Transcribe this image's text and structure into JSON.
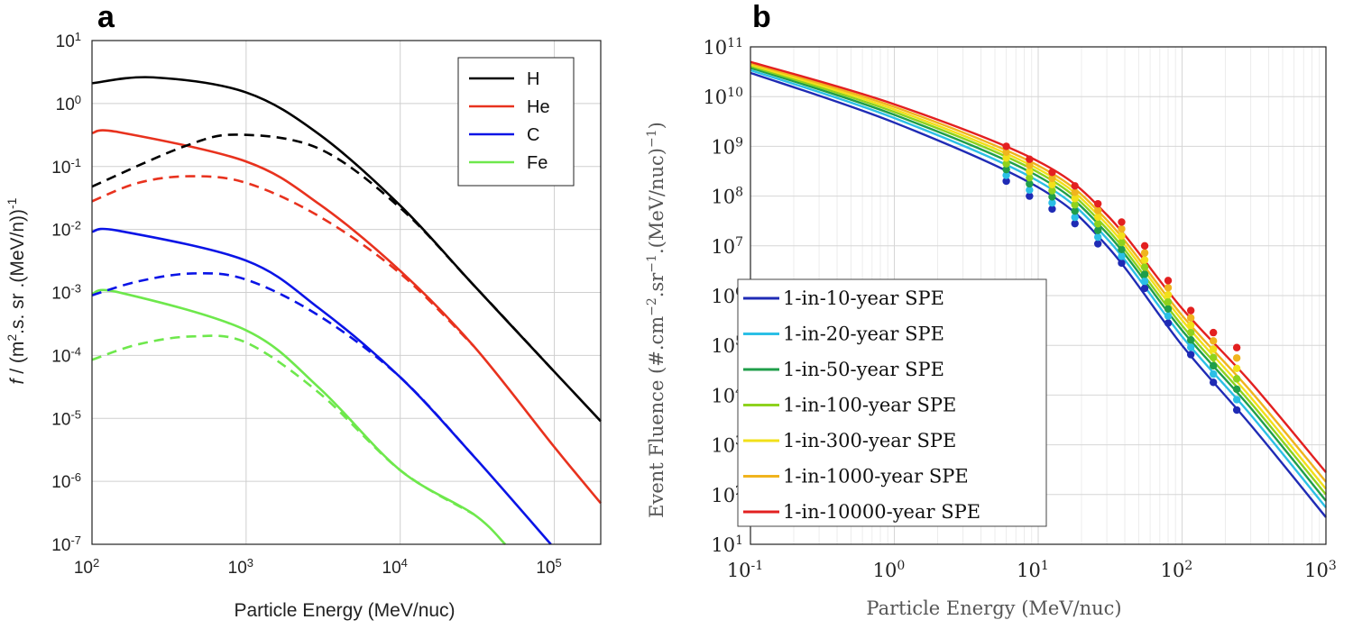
{
  "chart_data": [
    {
      "panel_label": "a",
      "type": "line",
      "xlabel": "Particle Energy (MeV/nuc)",
      "ylabel": "f / (m².s. sr .(MeV/n))⁻¹",
      "ylabel_parts": {
        "italic": "f",
        "pre": " / (m",
        "sup1": "2",
        "mid": ".s. sr .(MeV/n))",
        "sup2": "-1"
      },
      "xscale": "log",
      "yscale": "log",
      "xlim": [
        100,
        200000
      ],
      "ylim": [
        1e-07,
        10
      ],
      "xticks": [
        {
          "base": "10",
          "exp": "2",
          "v": 100
        },
        {
          "base": "10",
          "exp": "3",
          "v": 1000
        },
        {
          "base": "10",
          "exp": "4",
          "v": 10000
        },
        {
          "base": "10",
          "exp": "5",
          "v": 100000
        }
      ],
      "yticks": [
        {
          "base": "10",
          "exp": "1",
          "v": 10
        },
        {
          "base": "10",
          "exp": "0",
          "v": 1
        },
        {
          "base": "10",
          "exp": "-1",
          "v": 0.1
        },
        {
          "base": "10",
          "exp": "-2",
          "v": 0.01
        },
        {
          "base": "10",
          "exp": "-3",
          "v": 0.001
        },
        {
          "base": "10",
          "exp": "-4",
          "v": 0.0001
        },
        {
          "base": "10",
          "exp": "-5",
          "v": 1e-05
        },
        {
          "base": "10",
          "exp": "-6",
          "v": 1e-06
        },
        {
          "base": "10",
          "exp": "-7",
          "v": 1e-07
        }
      ],
      "grid": true,
      "legend_position": "top-right",
      "series": [
        {
          "name": "H",
          "style": "solid",
          "color": "#000000",
          "x": [
            100,
            250,
            1000,
            3000,
            10000,
            30000,
            100000,
            200000
          ],
          "y": [
            2.1,
            2.6,
            1.5,
            0.32,
            0.024,
            0.0013,
            5.5e-05,
            9e-06
          ]
        },
        {
          "name": "He",
          "style": "solid",
          "color": "#e8321e",
          "x": [
            100,
            150,
            1000,
            3000,
            10000,
            30000,
            100000,
            200000
          ],
          "y": [
            0.34,
            0.35,
            0.12,
            0.025,
            0.0022,
            0.00014,
            3.5e-06,
            4.5e-07
          ]
        },
        {
          "name": "C",
          "style": "solid",
          "color": "#0a14e6",
          "x": [
            100,
            150,
            1000,
            3000,
            10000,
            30000,
            95000
          ],
          "y": [
            0.0092,
            0.0095,
            0.0032,
            0.00055,
            4.5e-05,
            2.5e-06,
            1e-07
          ]
        },
        {
          "name": "Fe",
          "style": "solid",
          "color": "#6ee84c",
          "x": [
            100,
            150,
            1000,
            3000,
            10000,
            30000,
            48000
          ],
          "y": [
            0.00095,
            0.001,
            0.00025,
            3e-05,
            1.5e-06,
            3e-07,
            1e-07
          ]
        },
        {
          "name": "",
          "style": "dashed",
          "color": "#000000",
          "x": [
            100,
            400,
            900,
            3000,
            10000,
            30000,
            100000
          ],
          "y": [
            0.048,
            0.21,
            0.32,
            0.19,
            0.022,
            0.0013,
            5.5e-05
          ]
        },
        {
          "name": "",
          "style": "dashed",
          "color": "#e8321e",
          "x": [
            100,
            200,
            430,
            1000,
            3000,
            10000,
            30000
          ],
          "y": [
            0.028,
            0.055,
            0.07,
            0.055,
            0.016,
            0.002,
            0.00014
          ]
        },
        {
          "name": "",
          "style": "dashed",
          "color": "#0a14e6",
          "x": [
            100,
            200,
            450,
            1000,
            3000,
            10000,
            30000
          ],
          "y": [
            0.0009,
            0.0015,
            0.002,
            0.0016,
            0.00042,
            4.5e-05,
            2.5e-06
          ]
        },
        {
          "name": "",
          "style": "dashed",
          "color": "#6ee84c",
          "x": [
            100,
            200,
            450,
            1000,
            3000,
            10000,
            30000
          ],
          "y": [
            8.5e-05,
            0.00015,
            0.0002,
            0.00016,
            2.5e-05,
            1.5e-06,
            3e-07
          ]
        }
      ]
    },
    {
      "panel_label": "b",
      "type": "line",
      "xlabel": "Particle Energy (MeV/nuc)",
      "ylabel_parts": {
        "pre": "Event Fluence (#.cm",
        "sup1": "−2",
        "mid": ".sr",
        "sup2": "−1",
        "post": ".(MeV/nuc)",
        "sup3": "−1",
        "end": ")"
      },
      "xscale": "log",
      "yscale": "log",
      "xlim": [
        0.1,
        1000
      ],
      "ylim": [
        10,
        100000000000.0
      ],
      "xticks": [
        {
          "base": "10",
          "exp": "-1",
          "v": 0.1
        },
        {
          "base": "10",
          "exp": "0",
          "v": 1
        },
        {
          "base": "10",
          "exp": "1",
          "v": 10
        },
        {
          "base": "10",
          "exp": "2",
          "v": 100
        },
        {
          "base": "10",
          "exp": "3",
          "v": 1000
        }
      ],
      "yticks": [
        {
          "base": "10",
          "exp": "11",
          "v": 100000000000.0
        },
        {
          "base": "10",
          "exp": "10",
          "v": 10000000000.0
        },
        {
          "base": "10",
          "exp": "9",
          "v": 1000000000.0
        },
        {
          "base": "10",
          "exp": "8",
          "v": 100000000.0
        },
        {
          "base": "10",
          "exp": "7",
          "v": 10000000.0
        },
        {
          "base": "10",
          "exp": "6",
          "v": 1000000.0
        },
        {
          "base": "10",
          "exp": "5",
          "v": 100000.0
        },
        {
          "base": "10",
          "exp": "4",
          "v": 10000.0
        },
        {
          "base": "10",
          "exp": "3",
          "v": 1000.0
        },
        {
          "base": "10",
          "exp": "2",
          "v": 100
        },
        {
          "base": "10",
          "exp": "1",
          "v": 10
        }
      ],
      "grid": true,
      "legend_position": "bottom-left",
      "marker_x": [
        6,
        8.7,
        12.5,
        18,
        26,
        38,
        55,
        80,
        115,
        165,
        240
      ],
      "series": [
        {
          "name": "1-in-10-year SPE",
          "color": "#1f2bb5",
          "x": [
            0.1,
            1,
            10,
            30,
            100,
            300,
            1000
          ],
          "y": [
            30000000000.0,
            3000000000.0,
            150000000.0,
            10000000.0,
            100000.0,
            2500.0,
            35
          ],
          "markers": [
            200000000.0,
            100000000.0,
            55000000.0,
            28000000.0,
            11000000.0,
            4500000.0,
            1400000.0,
            280000.0,
            65000.0,
            18000.0,
            5000.0
          ]
        },
        {
          "name": "1-in-20-year SPE",
          "color": "#2bbfe6",
          "x": [
            0.1,
            1,
            10,
            30,
            100,
            300,
            1000
          ],
          "y": [
            34000000000.0,
            3700000000.0,
            200000000.0,
            14000000.0,
            150000.0,
            4000.0,
            55
          ]
        },
        {
          "name": "1-in-50-year SPE",
          "color": "#1f9e4a",
          "x": [
            0.1,
            1,
            10,
            30,
            100,
            300,
            1000
          ],
          "y": [
            38000000000.0,
            4300000000.0,
            250000000.0,
            18000000.0,
            200000.0,
            5500.0,
            75
          ]
        },
        {
          "name": "1-in-100-year SPE",
          "color": "#8ed21e",
          "x": [
            0.1,
            1,
            10,
            30,
            100,
            300,
            1000
          ],
          "y": [
            41000000000.0,
            4900000000.0,
            300000000.0,
            22000000.0,
            250000.0,
            7000.0,
            100
          ]
        },
        {
          "name": "1-in-300-year SPE",
          "color": "#f2e01a",
          "x": [
            0.1,
            1,
            10,
            30,
            100,
            300,
            1000
          ],
          "y": [
            44000000000.0,
            5500000000.0,
            350000000.0,
            27000000.0,
            320000.0,
            9000.0,
            130
          ]
        },
        {
          "name": "1-in-1000-year SPE",
          "color": "#f0b41e",
          "x": [
            0.1,
            1,
            10,
            30,
            100,
            300,
            1000
          ],
          "y": [
            47000000000.0,
            6200000000.0,
            410000000.0,
            33000000.0,
            400000.0,
            12000.0,
            180
          ]
        },
        {
          "name": "1-in-10000-year SPE",
          "color": "#e32020",
          "x": [
            0.1,
            1,
            10,
            30,
            100,
            300,
            1000
          ],
          "y": [
            50000000000.0,
            7000000000.0,
            500000000.0,
            42000000.0,
            550000.0,
            18000.0,
            280
          ],
          "markers": [
            1000000000.0,
            550000000.0,
            300000000.0,
            160000000.0,
            70000000.0,
            30000000.0,
            10000000.0,
            2000000.0,
            500000.0,
            180000.0,
            90000.0
          ]
        }
      ]
    }
  ]
}
